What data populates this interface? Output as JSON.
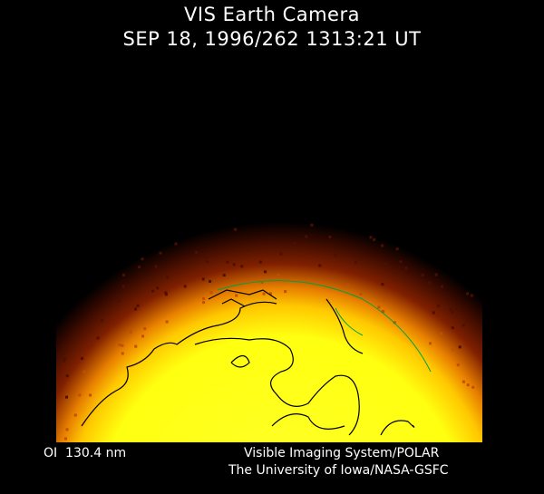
{
  "header": {
    "title": "VIS Earth Camera",
    "timestamp": "SEP 18, 1996/262 1313:21 UT"
  },
  "footer": {
    "wavelength": "OI  130.4 nm",
    "credit_line1": "Visible Imaging System/POLAR",
    "credit_line2": "The University of Iowa/NASA-GSFC"
  },
  "colors": {
    "background": "#000000",
    "dayglow": "#ffff20",
    "glow_edge": "#e07000",
    "coastlines": "#000000",
    "grid": "#00a040"
  }
}
